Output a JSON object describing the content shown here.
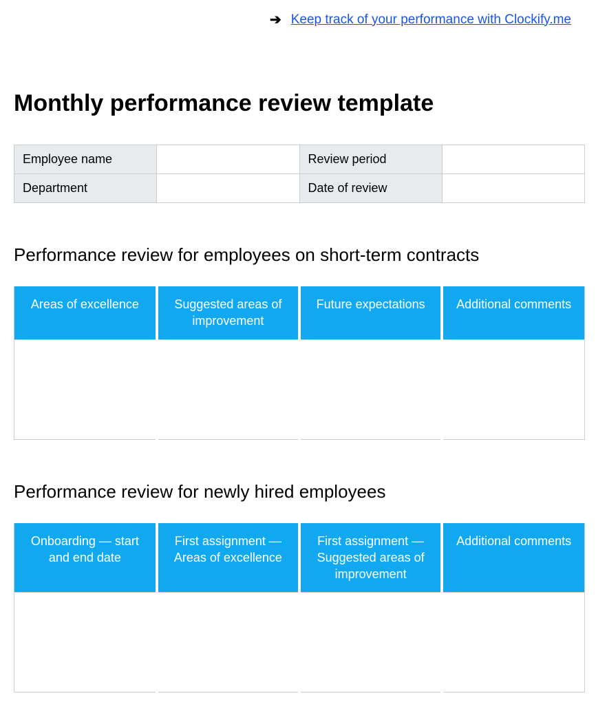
{
  "header": {
    "arrow_glyph": "➔",
    "link_text": "Keep track of your performance with Clockify.me"
  },
  "page_title": "Monthly performance review template",
  "info_table": {
    "rows": [
      {
        "label1": "Employee name",
        "value1": "",
        "label2": "Review period",
        "value2": ""
      },
      {
        "label1": "Department",
        "value1": "",
        "label2": "Date of review",
        "value2": ""
      }
    ],
    "label_bg": "#e7ebee",
    "border_color": "#cccccc"
  },
  "section1": {
    "title": "Performance review for employees on short-term contracts",
    "columns": [
      "Areas of excellence",
      "Suggested areas of improvement",
      "Future expectations",
      "Additional comments"
    ],
    "header_bg": "#12a8f0",
    "header_text_color": "#ffffff"
  },
  "section2": {
    "title": "Performance review for newly hired employees",
    "columns": [
      "Onboarding — start and end date",
      "First assignment — Areas of excellence",
      "First assignment — Suggested areas of improvement",
      "Additional comments"
    ],
    "header_bg": "#12a8f0",
    "header_text_color": "#ffffff"
  }
}
